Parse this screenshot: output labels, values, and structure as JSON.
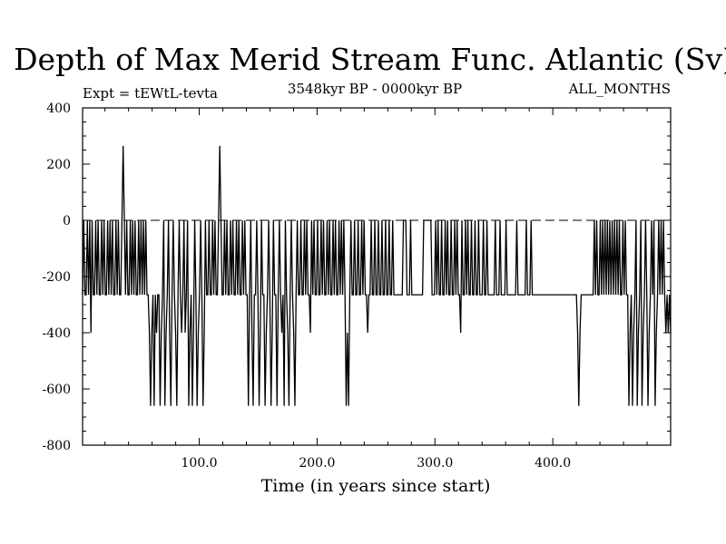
{
  "chart_data": {
    "type": "line",
    "title": "Depth of Max Merid Stream Func. Atlantic (Sv)",
    "subtitle_left": "Expt = tEWtL-tevta",
    "subtitle_center": "3548kyr BP - 0000kyr BP",
    "subtitle_right": "ALL_MONTHS",
    "xlabel": "Time (in years since start)",
    "ylabel": "",
    "xlim": [
      1,
      500
    ],
    "ylim": [
      -800,
      400
    ],
    "xticks": [
      100.0,
      200.0,
      300.0,
      400.0
    ],
    "xtick_labels": [
      "100.0",
      "200.0",
      "300.0",
      "400.0"
    ],
    "yticks": [
      400,
      200,
      0,
      -200,
      -400,
      -600,
      -800
    ],
    "ytick_labels": [
      "400",
      "200",
      "0",
      "-200",
      "-400",
      "-600",
      "-800"
    ],
    "reference_line": {
      "y": 0,
      "style": "dashed"
    },
    "grid": false,
    "series": [
      {
        "values": [
          -265,
          0,
          -265,
          -265,
          0,
          -265,
          0,
          -400,
          0,
          -265,
          -265,
          0,
          -265,
          0,
          -265,
          -265,
          0,
          -265,
          0,
          -265,
          -265,
          0,
          -265,
          0,
          -265,
          0,
          -265,
          -265,
          0,
          -265,
          0,
          -265,
          -265,
          0,
          265,
          0,
          -265,
          0,
          -265,
          -265,
          0,
          -265,
          0,
          -265,
          0,
          -265,
          -265,
          0,
          -265,
          0,
          -265,
          0,
          -265,
          0,
          -265,
          -265,
          -400,
          -660,
          -400,
          -265,
          -660,
          -265,
          -400,
          -265,
          -265,
          -660,
          -400,
          -265,
          0,
          -660,
          -400,
          -265,
          0,
          -400,
          -660,
          -265,
          0,
          -265,
          -400,
          -660,
          -265,
          0,
          -265,
          -400,
          -265,
          0,
          -400,
          -265,
          0,
          -660,
          -400,
          -265,
          -660,
          -400,
          0,
          -265,
          -660,
          -400,
          -265,
          0,
          -265,
          -660,
          -400,
          0,
          -265,
          -265,
          0,
          -265,
          -265,
          0,
          -265,
          0,
          -265,
          -265,
          0,
          265,
          0,
          -265,
          -265,
          0,
          -265,
          0,
          -265,
          -265,
          0,
          -265,
          0,
          -265,
          -265,
          0,
          -265,
          0,
          -265,
          -265,
          0,
          -265,
          0,
          -265,
          -265,
          -660,
          -265,
          0,
          -400,
          -660,
          -265,
          -265,
          0,
          -265,
          -660,
          -400,
          0,
          -265,
          -265,
          -660,
          -400,
          -265,
          0,
          -265,
          -660,
          -400,
          0,
          -265,
          -265,
          -660,
          -265,
          0,
          -265,
          -400,
          -265,
          -660,
          0,
          -265,
          -400,
          -660,
          -265,
          0,
          -265,
          -400,
          -660,
          -265,
          0,
          -265,
          -265,
          0,
          -265,
          -265,
          0,
          -265,
          0,
          -265,
          -265,
          -400,
          0,
          -265,
          0,
          -265,
          -265,
          0,
          -265,
          -265,
          0,
          -265,
          0,
          -265,
          -265,
          0,
          -265,
          0,
          -265,
          -265,
          0,
          -265,
          0,
          -265,
          -265,
          0,
          -265,
          0,
          -265,
          0,
          -265,
          -660,
          -400,
          -660,
          -265,
          0,
          -265,
          -265,
          0,
          -265,
          -265,
          0,
          -265,
          -265,
          0,
          -265,
          0,
          -265,
          -265,
          -400,
          -265,
          -265,
          0,
          -265,
          -265,
          0,
          -265,
          -265,
          0,
          -265,
          -265,
          0,
          -265,
          -265,
          0,
          -265,
          -265,
          0,
          -265,
          -265,
          0,
          -265,
          -265,
          -265,
          -265,
          -265,
          -265,
          -265,
          -265,
          0,
          0,
          0,
          -265,
          -265,
          -265,
          0,
          -265,
          -265,
          -265,
          -265,
          -265,
          -265,
          -265,
          -265,
          -265,
          -265,
          0,
          0,
          0,
          0,
          0,
          0,
          0,
          -265,
          -265,
          -265,
          0,
          -265,
          0,
          -265,
          -265,
          0,
          -265,
          -265,
          0,
          -265,
          0,
          -265,
          -265,
          0,
          -265,
          -265,
          0,
          -265,
          0,
          -265,
          -265,
          -400,
          0,
          -265,
          -265,
          0,
          -265,
          0,
          -265,
          -265,
          0,
          -265,
          -265,
          0,
          -265,
          -265,
          0,
          -265,
          -265,
          -265,
          0,
          -265,
          -265,
          0,
          -265,
          -265,
          -265,
          -265,
          -265,
          -265,
          0,
          -265,
          -265,
          -265,
          0,
          -265,
          -265,
          -265,
          -265,
          0,
          -265,
          -265,
          -265,
          -265,
          -265,
          -265,
          -265,
          -265,
          0,
          -265,
          -265,
          -265,
          -265,
          -265,
          -265,
          -265,
          0,
          -265,
          -265,
          -265,
          0,
          -265,
          -265,
          -265,
          -265,
          -265,
          -265,
          -265,
          -265,
          -265,
          -265,
          -265,
          -265,
          -265,
          -265,
          -265,
          -265,
          -265,
          -265,
          -265,
          -265,
          -265,
          -265,
          -265,
          -265,
          -265,
          -265,
          -265,
          -265,
          -265,
          -265,
          -265,
          -265,
          -265,
          -265,
          -265,
          -265,
          -265,
          -265,
          -400,
          -660,
          -400,
          -265,
          -265,
          -265,
          -265,
          -265,
          -265,
          -265,
          -265,
          -265,
          -265,
          -265,
          0,
          -265,
          0,
          -265,
          -265,
          0,
          -265,
          0,
          -265,
          0,
          -265,
          0,
          -265,
          0,
          -265,
          0,
          -265,
          0,
          -265,
          0,
          -265,
          0,
          -265,
          -265,
          0,
          -265,
          0,
          -265,
          -265,
          -660,
          -400,
          -265,
          -660,
          -400,
          -265,
          0,
          -660,
          -400,
          -265,
          0,
          -660,
          -400,
          -265,
          0,
          -265,
          -660,
          -400,
          -265,
          0,
          -265,
          0,
          -660,
          -400,
          -265,
          0,
          -265,
          0,
          -265,
          0,
          -265,
          -400,
          -265,
          -400,
          -265,
          -400
        ]
      }
    ]
  }
}
